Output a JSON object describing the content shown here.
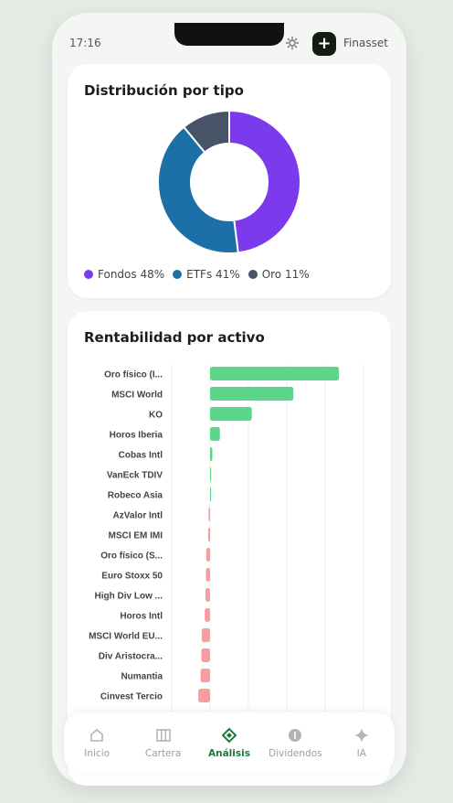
{
  "status": {
    "time": "17:16"
  },
  "header": {
    "add_label": "+",
    "brand": "Finasset"
  },
  "distribution": {
    "title": "Distribución por tipo",
    "legend": [
      {
        "label": "Fondos 48%",
        "color": "#7c3aed"
      },
      {
        "label": "ETFs 41%",
        "color": "#1d6fa8"
      },
      {
        "label": "Oro 11%",
        "color": "#475467"
      }
    ]
  },
  "returns": {
    "title": "Rentabilidad por activo"
  },
  "chart_data": [
    {
      "type": "pie",
      "title": "Distribución por tipo",
      "categories": [
        "Fondos",
        "ETFs",
        "Oro"
      ],
      "values": [
        48,
        41,
        11
      ],
      "colors": [
        "#7c3aed",
        "#1d6fa8",
        "#475467"
      ],
      "donut": true,
      "legend": "bottom"
    },
    {
      "type": "bar",
      "orientation": "horizontal",
      "title": "Rentabilidad por activo",
      "categories": [
        "Oro físico (I...",
        "MSCI World",
        "KO",
        "Horos Iberia",
        "Cobas Intl",
        "VanEck TDIV",
        "Robeco Asia",
        "AzValor Intl",
        "MSCI EM IMI",
        "Oro físico (S...",
        "Euro Stoxx 50",
        "High Div Low ...",
        "Horos Intl",
        "MSCI World EU...",
        "Div Aristocra...",
        "Numantia",
        "Cinvest Tercio"
      ],
      "values": [
        34,
        22,
        11,
        2.6,
        0.6,
        0.2,
        0.1,
        -0.4,
        -0.5,
        -1.0,
        -1.1,
        -1.2,
        -1.4,
        -2.2,
        -2.3,
        -2.5,
        -3.1
      ],
      "positive_color": "#5cd68a",
      "negative_color": "#f79ca0",
      "grid": true
    }
  ],
  "nav": [
    {
      "label": "Inicio",
      "icon": "home-icon",
      "active": false
    },
    {
      "label": "Cartera",
      "icon": "wallet-icon",
      "active": false
    },
    {
      "label": "Análisis",
      "icon": "analysis-icon",
      "active": true
    },
    {
      "label": "Dividendos",
      "icon": "dividends-icon",
      "active": false
    },
    {
      "label": "IA",
      "icon": "sparkle-icon",
      "active": false
    }
  ]
}
